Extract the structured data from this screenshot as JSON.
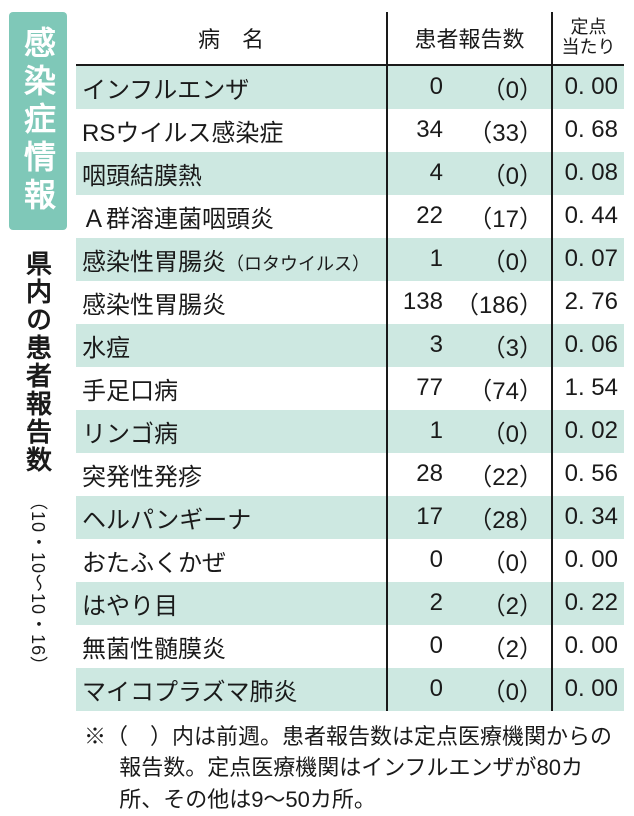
{
  "left": {
    "banner": "感染症情報",
    "subtitle": "県内の患者報告数",
    "period": "（10・10〜10・16）"
  },
  "table": {
    "headers": {
      "name": "病名",
      "count": "患者報告数",
      "rate": "定点\n当たり"
    },
    "rows": [
      {
        "name": "インフルエンザ",
        "cur": "0",
        "prev": "（0）",
        "rate": "0. 00"
      },
      {
        "name": "RSウイルス感染症",
        "cur": "34",
        "prev": "（33）",
        "rate": "0. 68"
      },
      {
        "name": "咽頭結膜熱",
        "cur": "4",
        "prev": "（0）",
        "rate": "0. 08"
      },
      {
        "name": "Ａ群溶連菌咽頭炎",
        "cur": "22",
        "prev": "（17）",
        "rate": "0. 44"
      },
      {
        "name": "感染性胃腸炎",
        "sub": "（ロタウイルス）",
        "cur": "1",
        "prev": "（0）",
        "rate": "0. 07"
      },
      {
        "name": "感染性胃腸炎",
        "cur": "138",
        "prev": "（186）",
        "rate": "2. 76"
      },
      {
        "name": "水痘",
        "cur": "3",
        "prev": "（3）",
        "rate": "0. 06"
      },
      {
        "name": "手足口病",
        "cur": "77",
        "prev": "（74）",
        "rate": "1. 54"
      },
      {
        "name": "リンゴ病",
        "cur": "1",
        "prev": "（0）",
        "rate": "0. 02"
      },
      {
        "name": "突発性発疹",
        "cur": "28",
        "prev": "（22）",
        "rate": "0. 56"
      },
      {
        "name": "ヘルパンギーナ",
        "cur": "17",
        "prev": "（28）",
        "rate": "0. 34"
      },
      {
        "name": "おたふくかぜ",
        "cur": "0",
        "prev": "（0）",
        "rate": "0. 00"
      },
      {
        "name": "はやり目",
        "cur": "2",
        "prev": "（2）",
        "rate": "0. 22"
      },
      {
        "name": "無菌性髄膜炎",
        "cur": "0",
        "prev": "（2）",
        "rate": "0. 00"
      },
      {
        "name": "マイコプラズマ肺炎",
        "cur": "0",
        "prev": "（0）",
        "rate": "0. 00"
      }
    ]
  },
  "footnote": "※（　）内は前週。患者報告数は定点医療機関からの報告数。定点医療機関はインフルエンザが80カ所、その他は9〜50カ所。"
}
